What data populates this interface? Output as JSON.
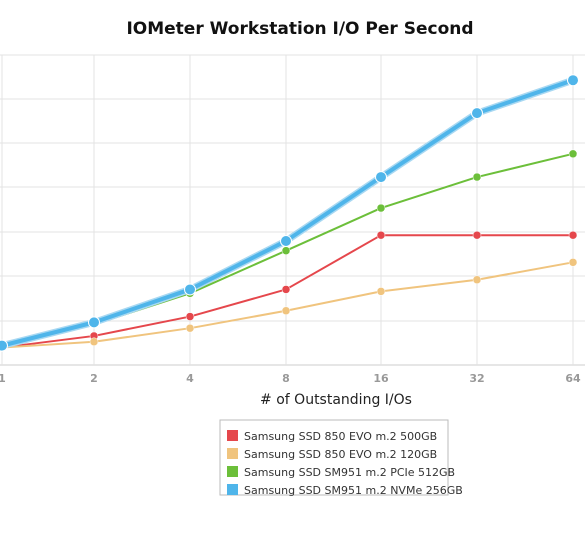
{
  "chart_data": {
    "type": "line",
    "title": "IOMeter Workstation I/O Per Second",
    "xlabel": "# of Outstanding I/Os",
    "ylabel": "",
    "x": [
      "1",
      "2",
      "4",
      "8",
      "16",
      "32",
      "64"
    ],
    "x_scale": "log2",
    "y_tick_labels_visible": false,
    "ylim": [
      0,
      8
    ],
    "grid": true,
    "legend_position": "bottom-center",
    "series": [
      {
        "name": "Samsung SSD 850 EVO m.2 500GB",
        "color": "#e5474c",
        "values": [
          0.45,
          0.75,
          1.25,
          1.95,
          3.35,
          3.35,
          3.35
        ]
      },
      {
        "name": "Samsung SSD 850 EVO m.2 120GB",
        "color": "#f0c47e",
        "values": [
          0.45,
          0.6,
          0.95,
          1.4,
          1.9,
          2.2,
          2.65
        ]
      },
      {
        "name": "Samsung SSD SM951 m.2 PCIe 512GB",
        "color": "#6cbf3a",
        "values": [
          0.5,
          1.05,
          1.85,
          2.95,
          4.05,
          4.85,
          5.45
        ]
      },
      {
        "name": "Samsung SSD SM951 m.2 NVMe 256GB",
        "color": "#4fb5ea",
        "values": [
          0.5,
          1.1,
          1.95,
          3.2,
          4.85,
          6.5,
          7.35
        ]
      }
    ]
  }
}
